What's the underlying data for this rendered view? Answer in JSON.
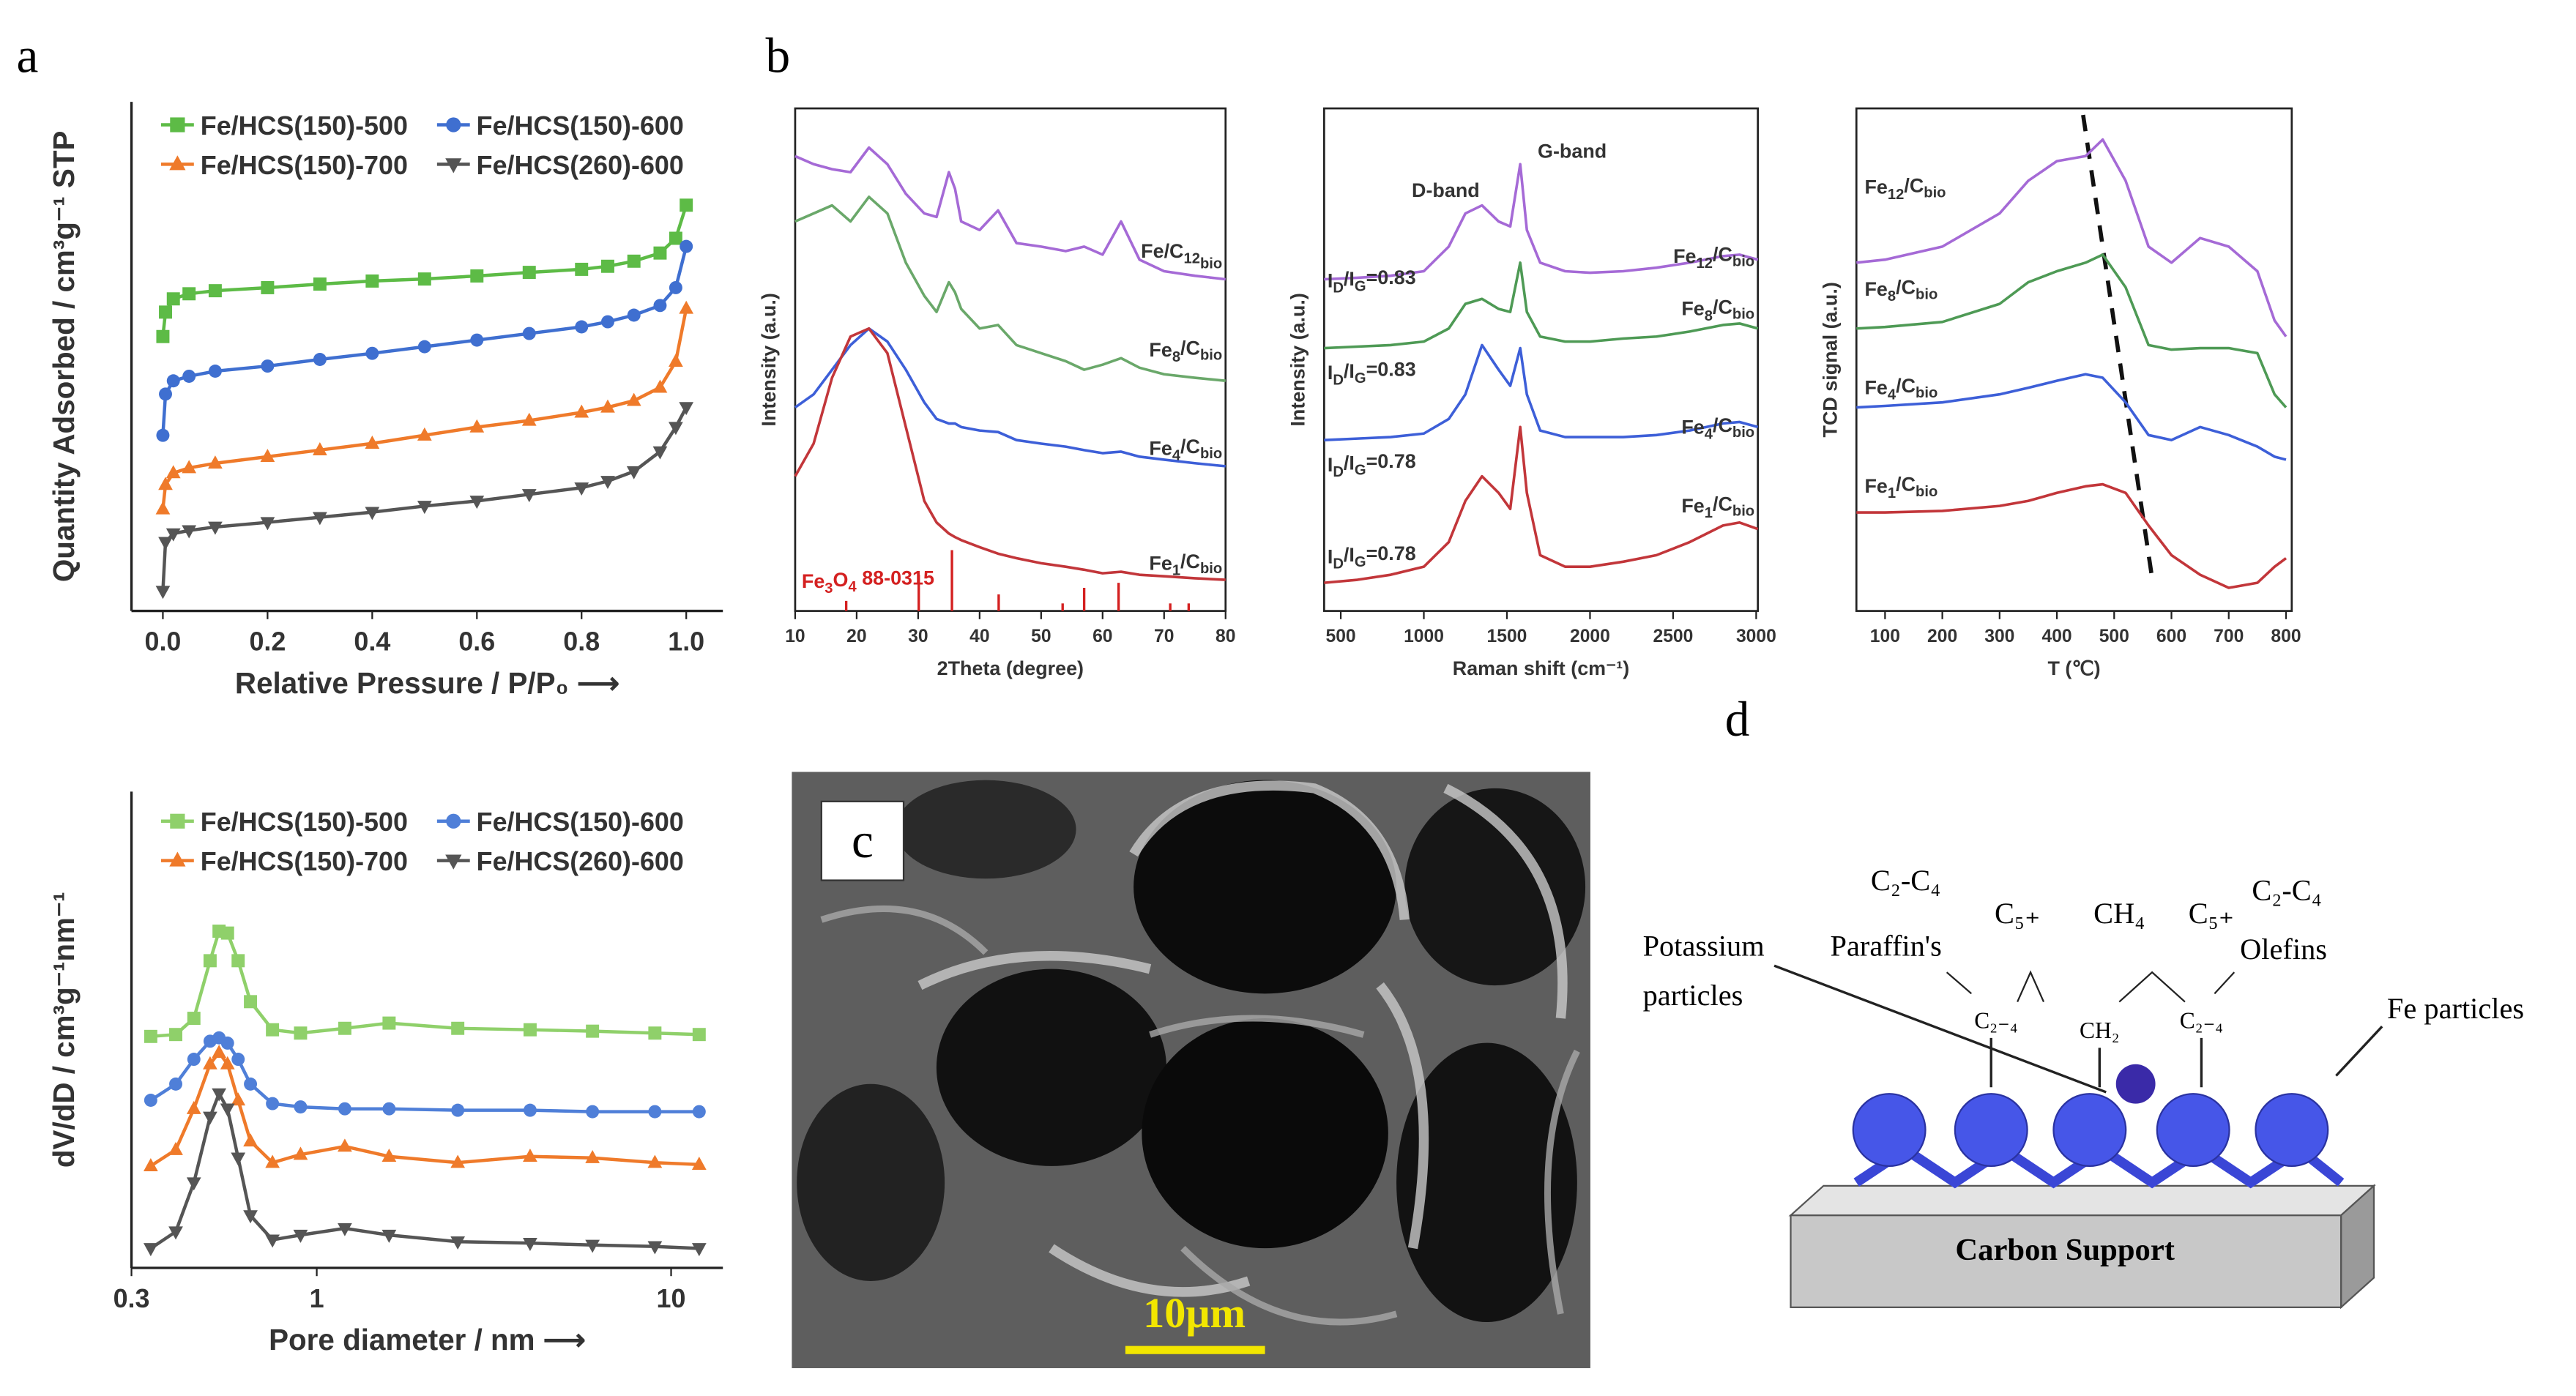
{
  "panels": {
    "a": "a",
    "b": "b",
    "c": "c",
    "d": "d"
  },
  "chart_data": [
    {
      "type": "line",
      "frame": "axes",
      "xlabel": "Relative Pressure / P/P₀ ⟶",
      "ylabel": "Quantity Adsorbed / cm³g⁻¹ STP",
      "x": [
        0,
        0.005,
        0.02,
        0.05,
        0.1,
        0.2,
        0.3,
        0.4,
        0.5,
        0.6,
        0.7,
        0.8,
        0.85,
        0.9,
        0.95,
        0.98,
        1.0
      ],
      "xlim": [
        -0.06,
        1.07
      ],
      "ylim": [
        0,
        100
      ],
      "xticks": [
        {
          "value": 0,
          "label": "0.0"
        },
        0.2,
        0.4,
        0.6,
        0.8,
        {
          "value": 1,
          "label": "1.0"
        }
      ],
      "legend": "top-left",
      "series": [
        {
          "name": "Fe/HCS(150)-500",
          "color": "#5dbb46",
          "marker": "square",
          "values": [
            53.9,
            58.7,
            61.3,
            62.3,
            62.9,
            63.5,
            64.2,
            64.8,
            65.2,
            65.8,
            66.5,
            67.1,
            67.7,
            68.7,
            70.3,
            73.2,
            79.7
          ]
        },
        {
          "name": "Fe/HCS(150)-600",
          "color": "#3f6fd0",
          "marker": "circle",
          "values": [
            34.5,
            42.6,
            45.2,
            46.1,
            47.1,
            48.1,
            49.4,
            50.6,
            51.9,
            53.2,
            54.5,
            55.8,
            56.8,
            58.1,
            60.0,
            63.5,
            71.6
          ]
        },
        {
          "name": "Fe/HCS(150)-700",
          "color": "#ef7a2a",
          "marker": "triangle",
          "values": [
            20.0,
            24.8,
            27.1,
            28.1,
            29.0,
            30.3,
            31.6,
            32.9,
            34.5,
            36.1,
            37.4,
            39.0,
            40.0,
            41.3,
            43.9,
            49.0,
            59.4
          ]
        },
        {
          "name": "Fe/HCS(260)-600",
          "color": "#555555",
          "marker": "triangle-down",
          "values": [
            3.9,
            13.5,
            15.2,
            15.8,
            16.5,
            17.4,
            18.4,
            19.4,
            20.6,
            21.6,
            22.9,
            24.2,
            25.5,
            27.4,
            31.3,
            36.1,
            40.0
          ]
        }
      ]
    },
    {
      "type": "line",
      "frame": "axes",
      "xscale": "log",
      "xlabel": "Pore diameter / nm ⟶",
      "ylabel": "dV/dD / cm³g⁻¹nm⁻¹",
      "x": [
        0.34,
        0.4,
        0.45,
        0.5,
        0.53,
        0.56,
        0.6,
        0.65,
        0.75,
        0.9,
        1.2,
        1.6,
        2.5,
        4,
        6,
        9,
        12
      ],
      "xlim": [
        0.3,
        14
      ],
      "ylim": [
        0,
        100
      ],
      "xticks": [
        0.3,
        1,
        10
      ],
      "legend": "top-left",
      "series": [
        {
          "name": "Fe/HCS(150)-500",
          "color": "#8fd06a",
          "marker": "square",
          "values": [
            48.6,
            49.0,
            52.4,
            64.5,
            70.7,
            70.3,
            64.5,
            55.9,
            50.0,
            49.3,
            50.3,
            51.4,
            50.3,
            50.0,
            49.7,
            49.3,
            49.0
          ]
        },
        {
          "name": "Fe/HCS(150)-600",
          "color": "#4f7fd8",
          "marker": "circle",
          "values": [
            35.2,
            38.6,
            43.8,
            47.6,
            48.3,
            47.2,
            43.8,
            38.6,
            34.5,
            33.8,
            33.4,
            33.4,
            33.1,
            33.1,
            32.8,
            32.8,
            32.8
          ]
        },
        {
          "name": "Fe/HCS(150)-700",
          "color": "#ef7a2a",
          "marker": "triangle",
          "values": [
            21.4,
            24.8,
            33.4,
            42.8,
            45.2,
            42.8,
            35.2,
            26.6,
            22.1,
            23.8,
            25.5,
            23.4,
            22.1,
            23.4,
            23.1,
            22.1,
            21.7
          ]
        },
        {
          "name": "Fe/HCS(260)-600",
          "color": "#555555",
          "marker": "triangle-down",
          "values": [
            4.1,
            7.6,
            17.9,
            31.7,
            36.6,
            33.4,
            23.1,
            11.0,
            5.9,
            6.9,
            8.3,
            6.9,
            5.5,
            5.2,
            4.8,
            4.5,
            4.1
          ]
        }
      ]
    },
    {
      "type": "line",
      "frame": "box",
      "xlabel": "2Theta (degree)",
      "ylabel": "Intensity (a.u.)",
      "x": [
        10,
        13,
        16,
        19,
        22,
        25,
        28,
        31,
        33,
        35,
        36,
        37,
        40,
        43,
        46,
        50,
        54,
        57,
        60,
        63,
        66,
        70,
        75,
        80
      ],
      "xlim": [
        10,
        80
      ],
      "ylim": [
        0,
        100
      ],
      "xticks": [
        10,
        20,
        30,
        40,
        50,
        60,
        70,
        80
      ],
      "series": [
        {
          "name": [
            "Fe/C",
            "12",
            "",
            "bio"
          ],
          "color": "#a56ad6",
          "values": [
            90.5,
            88.9,
            87.9,
            87.3,
            92.2,
            88.9,
            83.0,
            79.1,
            78.4,
            87.3,
            84.0,
            77.5,
            75.8,
            79.7,
            73.2,
            72.5,
            71.6,
            72.5,
            70.9,
            77.5,
            69.9,
            67.6,
            66.7,
            66.0
          ]
        },
        {
          "name": [
            "Fe",
            "8",
            "/C",
            "bio"
          ],
          "color": "#6aa86a",
          "values": [
            77.5,
            79.1,
            80.7,
            77.5,
            82.4,
            79.1,
            69.3,
            62.7,
            59.5,
            65.4,
            63.4,
            60.1,
            56.2,
            56.9,
            52.9,
            51.3,
            49.7,
            48.0,
            49.0,
            50.3,
            48.4,
            47.1,
            46.4,
            45.8
          ]
        },
        {
          "name": [
            "Fe",
            "4",
            "/C",
            "bio"
          ],
          "color": "#3d5fd8",
          "values": [
            40.5,
            43.1,
            48.0,
            52.9,
            56.2,
            53.6,
            48.0,
            41.5,
            38.2,
            37.3,
            37.3,
            36.6,
            35.9,
            35.6,
            34.0,
            33.3,
            32.7,
            32.0,
            31.4,
            31.7,
            30.7,
            30.1,
            29.4,
            28.8
          ]
        },
        {
          "name": [
            "Fe",
            "1",
            "/C",
            "bio"
          ],
          "color": "#c2363a",
          "values": [
            26.8,
            33.3,
            46.4,
            54.6,
            56.2,
            51.3,
            36.6,
            21.9,
            17.6,
            15.4,
            14.7,
            14.1,
            12.7,
            11.4,
            10.5,
            9.5,
            8.8,
            8.2,
            7.5,
            7.8,
            7.2,
            6.9,
            6.5,
            6.2
          ]
        }
      ],
      "sticks": {
        "color": "#d42020",
        "x": [
          18.3,
          30.1,
          35.5,
          43.1,
          53.5,
          57,
          62.6,
          71,
          74
        ],
        "values": [
          2,
          7.2,
          12.1,
          3.3,
          1.5,
          4.6,
          5.6,
          1.5,
          1.5
        ]
      },
      "annotations": [
        {
          "text": [
            "Fe",
            "3",
            "O",
            "4",
            " 88-0315"
          ],
          "color": "#d42020"
        }
      ]
    },
    {
      "type": "line",
      "frame": "box",
      "xlabel": "Raman shift (cm⁻¹)",
      "ylabel": "Intensity (a.u.)",
      "x": [
        400,
        600,
        800,
        1000,
        1150,
        1250,
        1350,
        1450,
        1520,
        1580,
        1620,
        1700,
        1850,
        2000,
        2200,
        2400,
        2600,
        2800,
        2900,
        3010
      ],
      "xlim": [
        400,
        3010
      ],
      "ylim": [
        0,
        100
      ],
      "xticks": [
        500,
        1000,
        1500,
        2000,
        2500,
        3000
      ],
      "series": [
        {
          "name": [
            "Fe",
            "12",
            "/C",
            "bio"
          ],
          "color": "#a56ad6",
          "values": [
            66.0,
            66.3,
            66.7,
            67.6,
            72.5,
            79.1,
            80.7,
            77.5,
            76.5,
            88.9,
            75.8,
            69.3,
            67.6,
            67.3,
            67.6,
            68.3,
            69.3,
            70.6,
            70.9,
            69.9
          ]
        },
        {
          "name": [
            "Fe",
            "8",
            "/C",
            "bio"
          ],
          "color": "#4e9a55",
          "values": [
            52.3,
            52.6,
            52.9,
            53.6,
            56.2,
            61.1,
            62.1,
            60.1,
            59.5,
            69.3,
            59.5,
            54.6,
            53.6,
            53.6,
            54.2,
            54.6,
            55.6,
            56.9,
            57.2,
            56.2
          ]
        },
        {
          "name": [
            "Fe",
            "4",
            "/C",
            "bio"
          ],
          "color": "#3d5fd8",
          "values": [
            34.0,
            34.3,
            34.6,
            35.3,
            38.2,
            43.1,
            52.9,
            48.0,
            44.8,
            52.3,
            43.1,
            35.9,
            34.6,
            34.6,
            34.6,
            35.0,
            35.9,
            37.3,
            37.6,
            36.6
          ]
        },
        {
          "name": [
            "Fe",
            "1",
            "/C",
            "bio"
          ],
          "color": "#c2363a",
          "values": [
            5.6,
            6.2,
            7.2,
            8.8,
            13.7,
            21.9,
            26.8,
            23.5,
            20.3,
            36.6,
            23.5,
            11.1,
            8.8,
            8.8,
            9.8,
            11.1,
            13.7,
            17.0,
            17.6,
            16.3
          ]
        }
      ],
      "annotations": [
        {
          "text": [
            "D-band"
          ]
        },
        {
          "text": [
            "G-band"
          ]
        },
        {
          "text": [
            "I",
            "D",
            "/I",
            "G",
            "=0.83"
          ]
        },
        {
          "text": [
            "I",
            "D",
            "/I",
            "G",
            "=0.83"
          ]
        },
        {
          "text": [
            "I",
            "D",
            "/I",
            "G",
            "=0.78"
          ]
        },
        {
          "text": [
            "I",
            "D",
            "/I",
            "G",
            "=0.78"
          ]
        }
      ]
    },
    {
      "type": "line",
      "frame": "box",
      "xlabel": "T (℃)",
      "ylabel": "TCD signal (a.u.)",
      "x": [
        50,
        100,
        200,
        300,
        350,
        400,
        450,
        480,
        520,
        560,
        600,
        650,
        700,
        750,
        780,
        800
      ],
      "xlim": [
        50,
        810
      ],
      "ylim": [
        0,
        100
      ],
      "xticks": [
        100,
        200,
        300,
        400,
        500,
        600,
        700,
        800
      ],
      "series": [
        {
          "name": [
            "Fe",
            "12",
            "/C",
            "bio"
          ],
          "color": "#a56ad6",
          "values": [
            69.3,
            69.9,
            72.5,
            79.1,
            85.6,
            89.5,
            90.5,
            93.8,
            85.6,
            72.5,
            69.3,
            74.2,
            72.5,
            67.6,
            57.8,
            54.6
          ]
        },
        {
          "name": [
            "Fe",
            "8",
            "/C",
            "bio"
          ],
          "color": "#4e9a55",
          "values": [
            56.2,
            56.5,
            57.5,
            61.1,
            65.4,
            67.6,
            69.3,
            70.9,
            64.4,
            52.9,
            52.0,
            52.3,
            52.3,
            51.3,
            43.1,
            40.5
          ]
        },
        {
          "name": [
            "Fe",
            "4",
            "/C",
            "bio"
          ],
          "color": "#3d5fd8",
          "values": [
            40.5,
            40.8,
            41.5,
            43.1,
            44.4,
            45.8,
            47.1,
            46.4,
            41.5,
            35.0,
            34.0,
            36.6,
            35.0,
            32.7,
            30.7,
            30.1
          ]
        },
        {
          "name": [
            "Fe",
            "1",
            "/C",
            "bio"
          ],
          "color": "#c2363a",
          "values": [
            19.6,
            19.6,
            19.9,
            20.9,
            21.9,
            23.5,
            24.8,
            25.2,
            23.5,
            17.0,
            11.1,
            7.2,
            4.6,
            5.6,
            8.8,
            10.5
          ]
        }
      ]
    }
  ],
  "sem": {
    "scale_bar": "10μm"
  },
  "diagram": {
    "c2c4_left": "C₂-C₄",
    "paraffins": "Paraffin's",
    "c5_left": "C₅₊",
    "ch4": "CH₄",
    "c5_right": "C₅₊",
    "c2c4_right": "C₂-C₄",
    "olefins": "Olefins",
    "potassium": "Potassium",
    "particles": "particles",
    "fe_particles": "Fe particles",
    "c24_left": "C₂₋₄",
    "ch2": "CH₂",
    "c24_right": "C₂₋₄",
    "support": "Carbon Support"
  }
}
